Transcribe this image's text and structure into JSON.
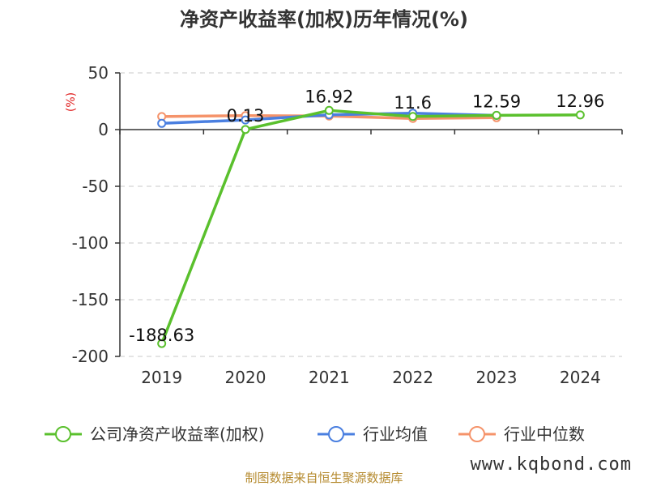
{
  "chart_data": {
    "type": "line",
    "title": "净资产收益率(加权)历年情况(%)",
    "ylabel": "(%)",
    "xlabel": "",
    "categories": [
      "2019",
      "2020",
      "2021",
      "2022",
      "2023",
      "2024"
    ],
    "ylim": [
      -200,
      50
    ],
    "yticks": [
      50,
      0,
      -50,
      -100,
      -150,
      -200
    ],
    "grid": true,
    "legend_position": "bottom",
    "series": [
      {
        "name": "公司净资产收益率(加权)",
        "color": "#5ac02d",
        "values": [
          -188.63,
          0.13,
          16.92,
          11.6,
          12.59,
          12.96
        ],
        "labels": [
          "-188.63",
          "0.13",
          "16.92",
          "11.6",
          "12.59",
          "12.96"
        ]
      },
      {
        "name": "行业均值",
        "color": "#4a7fe0",
        "values": [
          5.5,
          8.5,
          13.0,
          14.5,
          12.5,
          null
        ]
      },
      {
        "name": "行业中位数",
        "color": "#f5936a",
        "values": [
          11.5,
          12.3,
          12.0,
          9.8,
          10.5,
          null
        ]
      }
    ]
  },
  "source": "制图数据来自恒生聚源数据库",
  "watermark": "www.kqbond.com"
}
